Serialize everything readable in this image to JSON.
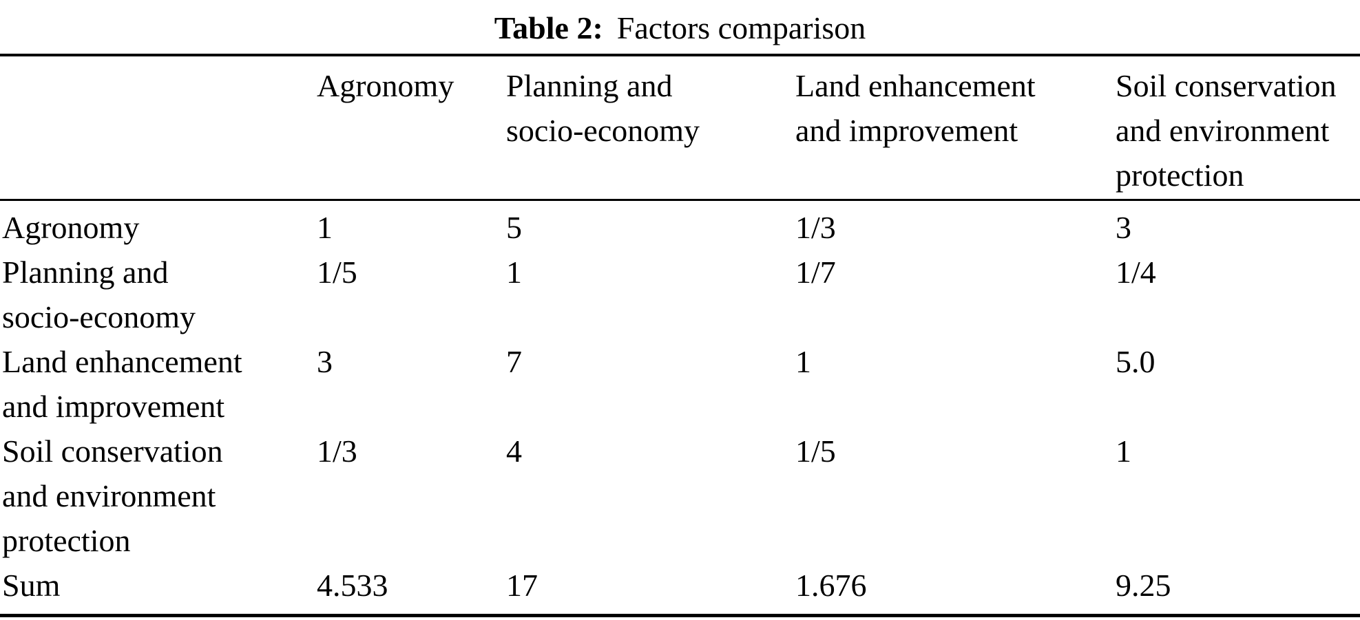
{
  "caption": {
    "label": "Table 2:",
    "title": "Factors comparison"
  },
  "table": {
    "columns": [
      "",
      "Agronomy",
      "Planning and\nsocio-economy",
      "Land enhancement\nand improvement",
      "Soil conservation\nand environment\nprotection"
    ],
    "rows": [
      {
        "label": "Agronomy",
        "values": [
          "1",
          "5",
          "1/3",
          "3"
        ]
      },
      {
        "label": "Planning and\nsocio-economy",
        "values": [
          "1/5",
          "1",
          "1/7",
          "1/4"
        ]
      },
      {
        "label": "Land enhancement\nand improvement",
        "values": [
          "3",
          "7",
          "1",
          "5.0"
        ]
      },
      {
        "label": "Soil conservation\nand environment\nprotection",
        "values": [
          "1/3",
          "4",
          "1/5",
          "1"
        ]
      },
      {
        "label": "Sum",
        "values": [
          "4.533",
          "17",
          "1.676",
          "9.25"
        ]
      }
    ]
  },
  "colors": {
    "background": "#ffffff",
    "text": "#000000",
    "rule": "#000000"
  }
}
